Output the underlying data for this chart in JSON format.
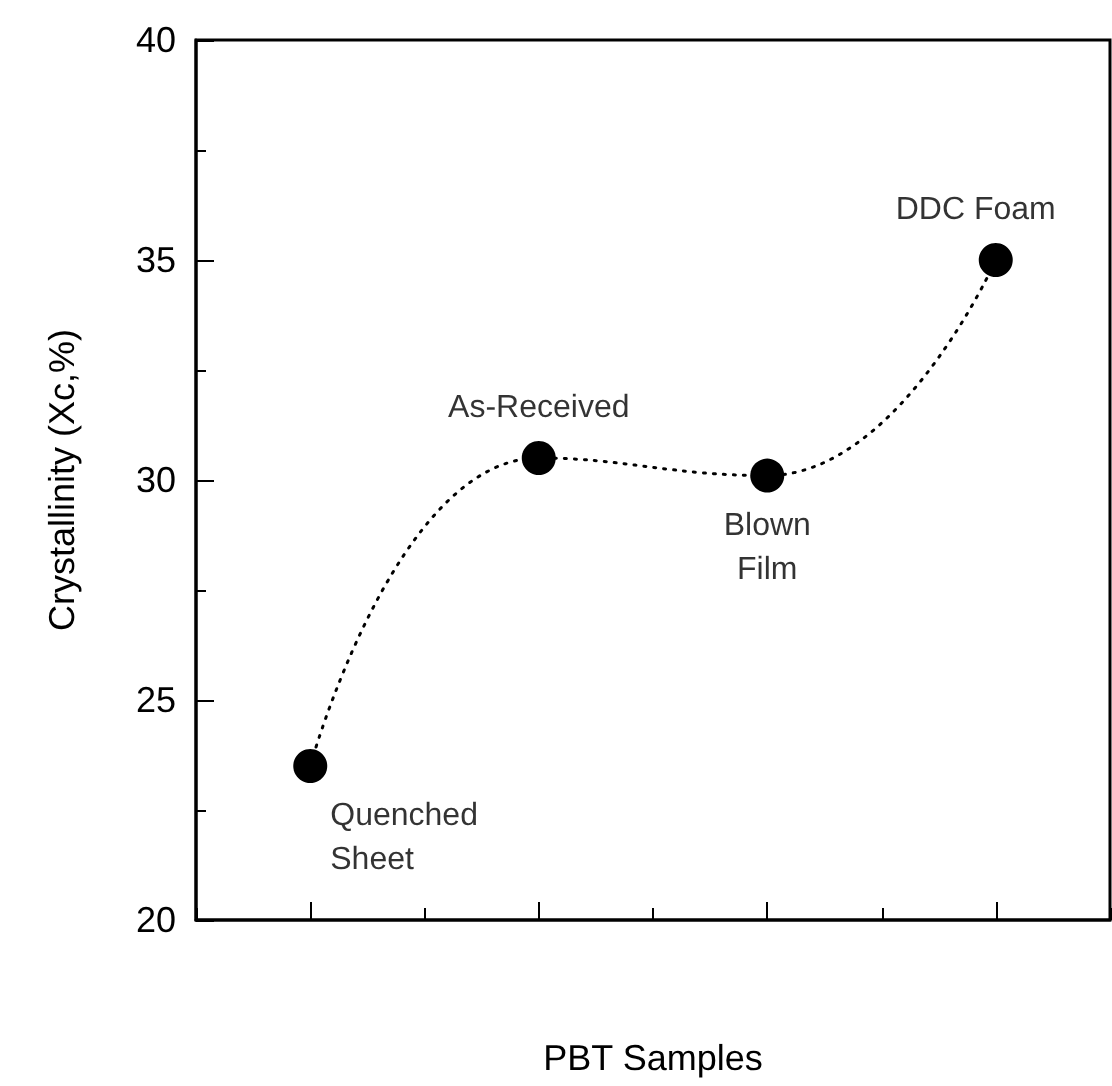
{
  "chart_data": {
    "type": "line",
    "xlabel": "PBT Samples",
    "ylabel": "Crystallinity (Xc,%)",
    "categories": [
      null,
      null,
      null,
      null
    ],
    "series": [
      {
        "color": "#000000",
        "values": [
          23.5,
          30.5,
          30.1,
          35.0
        ]
      }
    ],
    "annotations": [
      "Quenched\nSheet",
      "As-Received",
      "Blown\nFilm",
      "DDC Foam"
    ],
    "ylim": [
      20,
      40
    ],
    "yticks": [
      20,
      25,
      30,
      35,
      40
    ],
    "grid": false,
    "marker": "circle",
    "line_style": "dotted"
  }
}
